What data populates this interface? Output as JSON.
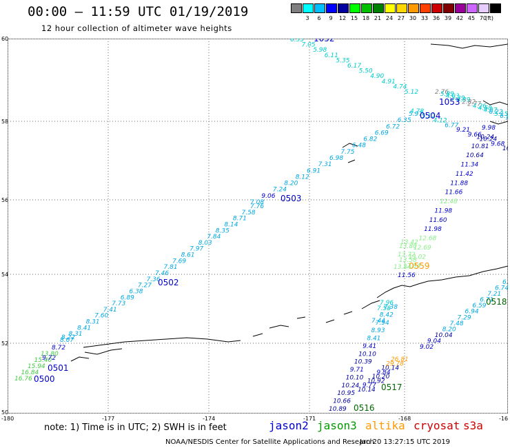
{
  "title": "00:00 – 11:59 UTC 01/19/2019",
  "subtitle": "12 hour collection of altimeter wave heights",
  "legend": {
    "unit": "(ft)",
    "items": [
      {
        "label": "",
        "color": "#7f7f7f"
      },
      {
        "label": "3",
        "color": "#00ffff"
      },
      {
        "label": "6",
        "color": "#00bfff"
      },
      {
        "label": "9",
        "color": "#0000ff"
      },
      {
        "label": "12",
        "color": "#0000a0"
      },
      {
        "label": "15",
        "color": "#00ff00"
      },
      {
        "label": "18",
        "color": "#00c000"
      },
      {
        "label": "21",
        "color": "#008000"
      },
      {
        "label": "24",
        "color": "#ffff00"
      },
      {
        "label": "27",
        "color": "#ffd700"
      },
      {
        "label": "30",
        "color": "#ff9900"
      },
      {
        "label": "33",
        "color": "#ff4000"
      },
      {
        "label": "36",
        "color": "#cc0000"
      },
      {
        "label": "39",
        "color": "#800000"
      },
      {
        "label": "42",
        "color": "#990099"
      },
      {
        "label": "45",
        "color": "#cc66ff"
      },
      {
        "label": "70",
        "color": "#e6ccff"
      },
      {
        "label": "",
        "color": "#000000"
      }
    ]
  },
  "axes": {
    "lat_ticks": [
      "60",
      "58",
      "56",
      "54",
      "52",
      "50"
    ],
    "lon_ticks": [
      "-180",
      "-177",
      "-174",
      "-171",
      "-168",
      "-16"
    ]
  },
  "tracks": [
    {
      "label": "0500",
      "color": "#0000cc",
      "points": [
        {
          "v": "16.76",
          "c": "#44cc44"
        },
        {
          "v": "16.84",
          "c": "#44cc44"
        },
        {
          "v": "15.94",
          "c": "#44cc44"
        },
        {
          "v": "15.40",
          "c": "#44cc44"
        },
        {
          "v": "13.80",
          "c": "#44cc44"
        }
      ]
    },
    {
      "label": "0501",
      "color": "#0000cc",
      "points": [
        {
          "v": "9.72",
          "c": "#0000cc"
        },
        {
          "v": "8.72",
          "c": "#0000cc"
        },
        {
          "v": "8.22",
          "c": "#00a8e0"
        }
      ]
    },
    {
      "label": "0502",
      "color": "#0000cc",
      "points": [
        {
          "v": "8.67",
          "c": "#00a8e0"
        },
        {
          "v": "8.31",
          "c": "#00a8e0"
        },
        {
          "v": "8.41",
          "c": "#00a8e0"
        },
        {
          "v": "8.31",
          "c": "#00a8e0"
        },
        {
          "v": "7.60",
          "c": "#00a8e0"
        },
        {
          "v": "7.41",
          "c": "#00a8e0"
        },
        {
          "v": "7.73",
          "c": "#00a8e0"
        },
        {
          "v": "6.89",
          "c": "#00a8e0"
        },
        {
          "v": "6.38",
          "c": "#00a8e0"
        },
        {
          "v": "7.27",
          "c": "#00a8e0"
        },
        {
          "v": "7.36",
          "c": "#00a8e0"
        },
        {
          "v": "7.46",
          "c": "#00a8e0"
        },
        {
          "v": "7.81",
          "c": "#00a8e0"
        },
        {
          "v": "7.69",
          "c": "#00a8e0"
        },
        {
          "v": "8.61",
          "c": "#00a8e0"
        },
        {
          "v": "7.97",
          "c": "#00a8e0"
        },
        {
          "v": "8.03",
          "c": "#00a8e0"
        },
        {
          "v": "7.84",
          "c": "#00a8e0"
        },
        {
          "v": "8.35",
          "c": "#00a8e0"
        },
        {
          "v": "8.14",
          "c": "#00a8e0"
        },
        {
          "v": "8.71",
          "c": "#00a8e0"
        },
        {
          "v": "7.58",
          "c": "#00a8e0"
        },
        {
          "v": "7.76",
          "c": "#00a8e0"
        }
      ]
    },
    {
      "label": "0503",
      "color": "#0000cc",
      "points": [
        {
          "v": "7.08",
          "c": "#00a8e0"
        },
        {
          "v": "9.06",
          "c": "#0000cc"
        },
        {
          "v": "7.24",
          "c": "#00a8e0"
        },
        {
          "v": "8.20",
          "c": "#00a8e0"
        },
        {
          "v": "8.12",
          "c": "#00a8e0"
        },
        {
          "v": "6.91",
          "c": "#00a8e0"
        },
        {
          "v": "7.31",
          "c": "#00a8e0"
        },
        {
          "v": "6.98",
          "c": "#00a8e0"
        },
        {
          "v": "7.75",
          "c": "#00a8e0"
        },
        {
          "v": "6.48",
          "c": "#00a8e0"
        },
        {
          "v": "6.82",
          "c": "#00a8e0"
        },
        {
          "v": "6.69",
          "c": "#00a8e0"
        },
        {
          "v": "6.72",
          "c": "#00a8e0"
        },
        {
          "v": "6.35",
          "c": "#00a8e0"
        },
        {
          "v": "5.97",
          "c": "#00a8e0"
        }
      ]
    },
    {
      "label": "0504",
      "color": "#0000cc",
      "points": [
        {
          "v": "4.78",
          "c": "#00cccc"
        },
        {
          "v": "5.12",
          "c": "#00cccc"
        },
        {
          "v": "4.12",
          "c": "#00cccc"
        },
        {
          "v": "6.77",
          "c": "#00a8e0"
        },
        {
          "v": "9.21",
          "c": "#0000cc"
        },
        {
          "v": "9.66",
          "c": "#0000cc"
        },
        {
          "v": "10.24",
          "c": "#0000a0"
        },
        {
          "v": "9.68",
          "c": "#0000cc"
        },
        {
          "v": "10.50",
          "c": "#0000a0"
        }
      ]
    },
    {
      "label": "1052",
      "color": "#0000cc",
      "points": [
        {
          "v": "6.35",
          "c": "#00cccc"
        },
        {
          "v": "7.05",
          "c": "#00cccc"
        },
        {
          "v": "5.98",
          "c": "#00cccc"
        },
        {
          "v": "6.11",
          "c": "#00cccc"
        },
        {
          "v": "5.35",
          "c": "#00cccc"
        },
        {
          "v": "6.17",
          "c": "#00cccc"
        },
        {
          "v": "5.50",
          "c": "#00cccc"
        },
        {
          "v": "4.90",
          "c": "#00cccc"
        },
        {
          "v": "4.91",
          "c": "#00cccc"
        },
        {
          "v": "4.74",
          "c": "#00cccc"
        },
        {
          "v": "5.12",
          "c": "#00cccc"
        }
      ]
    },
    {
      "label": "1053",
      "color": "#0000cc",
      "points": [
        {
          "v": "2.76",
          "c": "#7f7f7f"
        },
        {
          "v": "5.89",
          "c": "#00cccc"
        },
        {
          "v": "4.03",
          "c": "#00cccc"
        },
        {
          "v": "5.39",
          "c": "#00cccc"
        },
        {
          "v": "4.89",
          "c": "#00cccc"
        },
        {
          "v": "2.82",
          "c": "#7f7f7f"
        },
        {
          "v": "2.77",
          "c": "#7f7f7f"
        },
        {
          "v": "4.26",
          "c": "#00cccc"
        },
        {
          "v": "4.68",
          "c": "#00cccc"
        },
        {
          "v": "4.87",
          "c": "#00cccc"
        },
        {
          "v": "6.22",
          "c": "#00a8e0"
        },
        {
          "v": "5.15",
          "c": "#00cccc"
        },
        {
          "v": "6.78",
          "c": "#00a8e0"
        },
        {
          "v": "7.3",
          "c": "#00a8e0"
        }
      ]
    },
    {
      "label": "0516",
      "color": "#006600",
      "points": [
        {
          "v": "10.89",
          "c": "#0000a0"
        },
        {
          "v": "10.66",
          "c": "#0000a0"
        },
        {
          "v": "10.95",
          "c": "#0000a0"
        },
        {
          "v": "10.24",
          "c": "#0000a0"
        },
        {
          "v": "10.10",
          "c": "#0000a0"
        },
        {
          "v": "9.71",
          "c": "#0000cc"
        },
        {
          "v": "10.39",
          "c": "#0000a0"
        },
        {
          "v": "10.10",
          "c": "#0000a0"
        },
        {
          "v": "9.41",
          "c": "#0000cc"
        },
        {
          "v": "8.41",
          "c": "#00a8e0"
        },
        {
          "v": "8.93",
          "c": "#00a8e0"
        },
        {
          "v": "7.94",
          "c": "#00a8e0"
        },
        {
          "v": "8.42",
          "c": "#00a8e0"
        },
        {
          "v": "7.38",
          "c": "#00a8e0"
        }
      ]
    },
    {
      "label": "0517",
      "color": "#006600",
      "points": [
        {
          "v": "10.14",
          "c": "#0000a0"
        },
        {
          "v": "9.77",
          "c": "#0000cc"
        },
        {
          "v": "10.92",
          "c": "#0000a0"
        },
        {
          "v": "10.20",
          "c": "#0000a0"
        },
        {
          "v": "9.84",
          "c": "#0000cc"
        },
        {
          "v": "10.14",
          "c": "#0000a0"
        },
        {
          "v": "29.78",
          "c": "#ff9900"
        },
        {
          "v": "26.81",
          "c": "#ff9900"
        }
      ]
    },
    {
      "label": "0518",
      "color": "#006600",
      "points": [
        {
          "v": "9.02",
          "c": "#0000cc"
        },
        {
          "v": "9.04",
          "c": "#0000cc"
        },
        {
          "v": "10.04",
          "c": "#0000a0"
        },
        {
          "v": "8.20",
          "c": "#00a8e0"
        },
        {
          "v": "7.48",
          "c": "#00a8e0"
        },
        {
          "v": "7.29",
          "c": "#00a8e0"
        },
        {
          "v": "6.94",
          "c": "#00a8e0"
        },
        {
          "v": "6.59",
          "c": "#00a8e0"
        },
        {
          "v": "6.71",
          "c": "#00a8e0"
        },
        {
          "v": "7.21",
          "c": "#00a8e0"
        },
        {
          "v": "6.74",
          "c": "#00a8e0"
        },
        {
          "v": "6.80",
          "c": "#00a8e0"
        }
      ]
    },
    {
      "label": "0559",
      "color": "#ff9900",
      "points": [
        {
          "v": "11.56",
          "c": "#0000cc"
        },
        {
          "v": "12.84",
          "c": "#88ee88"
        },
        {
          "v": "13.02",
          "c": "#88ee88"
        },
        {
          "v": "12.69",
          "c": "#88ee88"
        },
        {
          "v": "12.68",
          "c": "#88ee88"
        },
        {
          "v": "11.98",
          "c": "#0000cc"
        },
        {
          "v": "11.60",
          "c": "#0000cc"
        },
        {
          "v": "11.98",
          "c": "#0000cc"
        },
        {
          "v": "12.48",
          "c": "#88ee88"
        },
        {
          "v": "11.66",
          "c": "#0000cc"
        },
        {
          "v": "11.88",
          "c": "#0000cc"
        },
        {
          "v": "11.42",
          "c": "#0000cc"
        },
        {
          "v": "11.34",
          "c": "#0000cc"
        },
        {
          "v": "10.64",
          "c": "#0000a0"
        },
        {
          "v": "10.81",
          "c": "#0000a0"
        },
        {
          "v": "10.24",
          "c": "#0000a0"
        },
        {
          "v": "9.98",
          "c": "#0000cc"
        }
      ]
    }
  ],
  "extra_labels": [
    {
      "v": "13.72",
      "c": "#88ee88"
    },
    {
      "v": "13.42",
      "c": "#88ee88"
    },
    {
      "v": "13.80",
      "c": "#88ee88"
    },
    {
      "v": "13.34",
      "c": "#88ee88"
    },
    {
      "v": "13.58",
      "c": "#88ee88"
    },
    {
      "v": "7.96",
      "c": "#00cccc"
    },
    {
      "v": "7.58",
      "c": "#00cccc"
    },
    {
      "v": "7.44",
      "c": "#00a8e0"
    }
  ],
  "note": "note:  1) Time is in UTC;  2) SWH is in feet",
  "satellites": [
    {
      "name": "jason2",
      "color": "#0000cc"
    },
    {
      "name": "jason3",
      "color": "#009900"
    },
    {
      "name": "altika",
      "color": "#ff9900"
    },
    {
      "name": "cryosat",
      "color": "#cc0000"
    },
    {
      "name": "s3a",
      "color": "#cc0000"
    }
  ],
  "footer": "NOAA/NESDIS Center for Satellite Applications and Research",
  "timestamp": "Jan 20 13:27:15 UTC 2019"
}
